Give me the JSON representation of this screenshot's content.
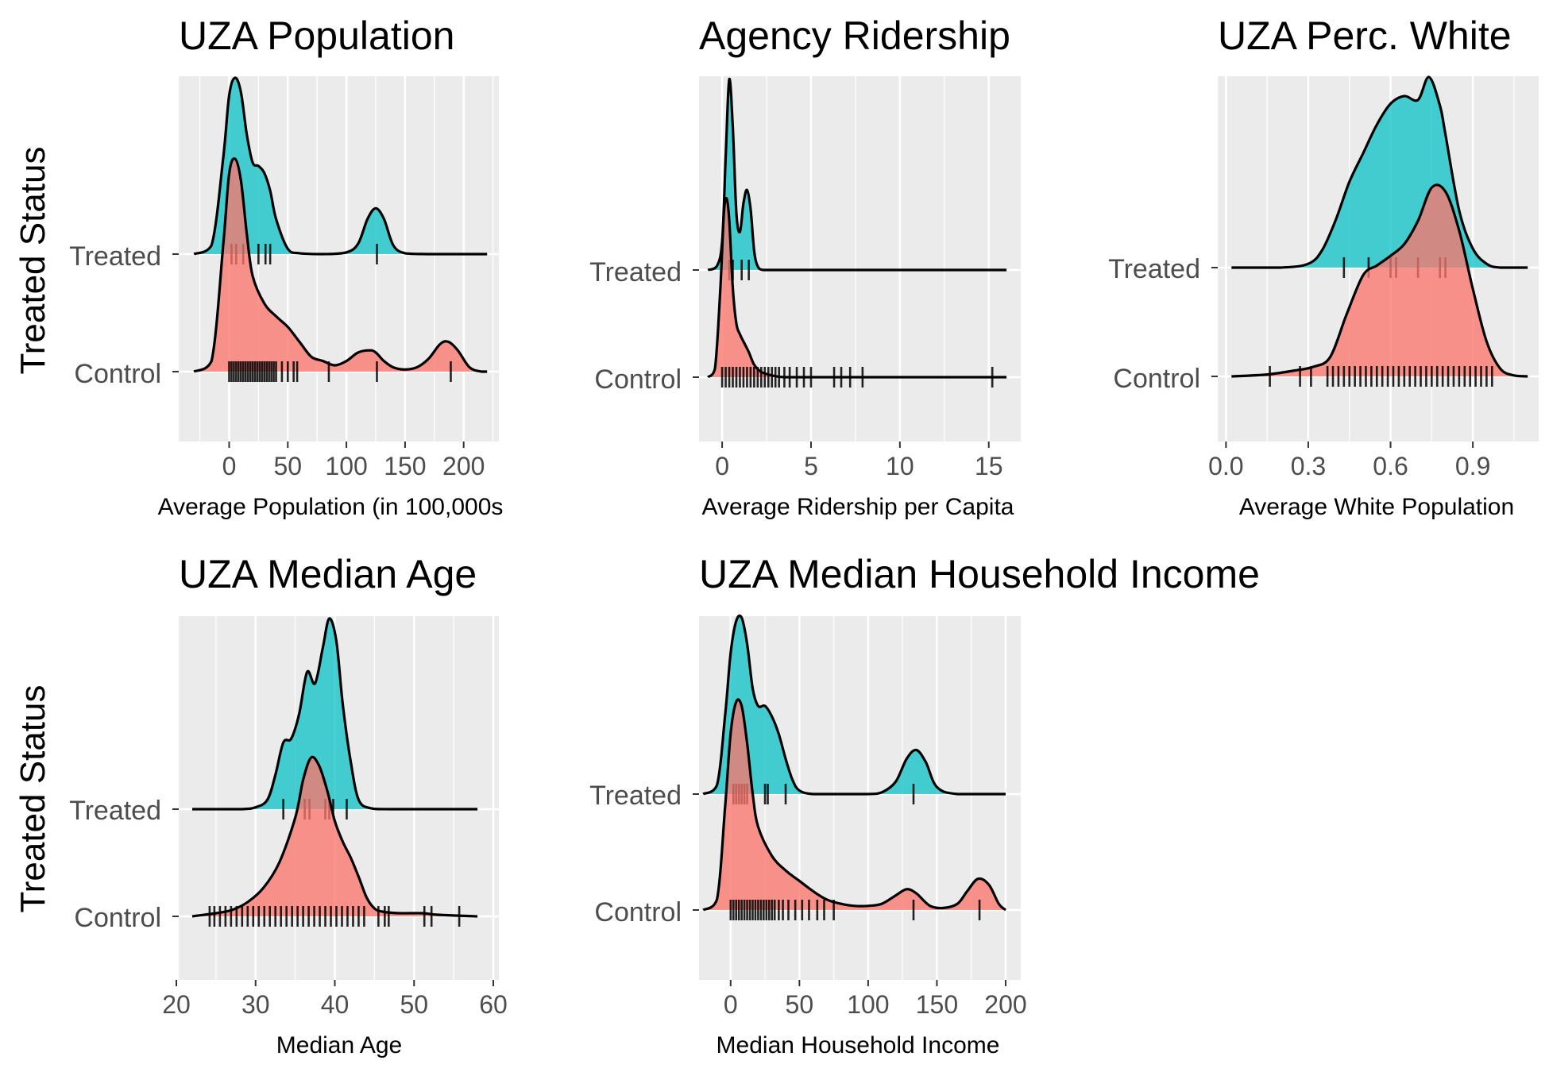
{
  "y_axis_title": "Treated Status",
  "groups": [
    "Treated",
    "Control"
  ],
  "colors": {
    "Treated": "#00BFC4",
    "Control": "#F8766D",
    "panel_bg": "#EBEBEB",
    "grid": "#FFFFFF",
    "outline": "#000000"
  },
  "chart_data": [
    {
      "type": "ridgeline",
      "title": "UZA Population",
      "xlabel": "Average Population (in 100,000s",
      "xlim": [
        -43,
        230
      ],
      "xticks": [
        0,
        50,
        100,
        150,
        200
      ],
      "xtick_labels": [
        "0",
        "50",
        "100",
        "150",
        "200"
      ],
      "series": [
        {
          "name": "Treated",
          "x": [
            -30,
            -15,
            -5,
            0,
            5,
            10,
            15,
            20,
            25,
            30,
            35,
            40,
            50,
            60,
            80,
            100,
            110,
            118,
            125,
            132,
            140,
            150,
            170,
            200,
            220
          ],
          "density": [
            0,
            0.05,
            0.55,
            0.9,
            1.0,
            0.92,
            0.68,
            0.52,
            0.5,
            0.46,
            0.36,
            0.2,
            0.03,
            0.005,
            0,
            0.01,
            0.06,
            0.2,
            0.26,
            0.2,
            0.05,
            0.005,
            0,
            0,
            0
          ],
          "rug": [
            2,
            6,
            12,
            25,
            31,
            35,
            126
          ]
        },
        {
          "name": "Control",
          "x": [
            -30,
            -15,
            -5,
            0,
            5,
            10,
            15,
            20,
            30,
            40,
            50,
            60,
            70,
            80,
            90,
            100,
            110,
            120,
            125,
            132,
            140,
            150,
            160,
            170,
            180,
            187,
            195,
            205,
            215,
            220
          ],
          "density": [
            0,
            0.05,
            0.6,
            0.93,
            1.0,
            0.9,
            0.65,
            0.45,
            0.32,
            0.26,
            0.21,
            0.14,
            0.07,
            0.05,
            0.03,
            0.05,
            0.09,
            0.1,
            0.09,
            0.05,
            0.02,
            0.01,
            0.02,
            0.06,
            0.13,
            0.14,
            0.1,
            0.02,
            0,
            0
          ],
          "rug": [
            0,
            2,
            4,
            6,
            8,
            10,
            12,
            14,
            16,
            18,
            20,
            22,
            24,
            26,
            28,
            30,
            32,
            34,
            36,
            38,
            40,
            45,
            50,
            55,
            58,
            85,
            126,
            189
          ]
        }
      ]
    },
    {
      "type": "ridgeline",
      "title": "Agency Ridership",
      "xlabel": "Average Ridership per Capita",
      "xlim": [
        -1.3,
        16.8
      ],
      "xticks": [
        0,
        5,
        10,
        15
      ],
      "xtick_labels": [
        "0",
        "5",
        "10",
        "15"
      ],
      "series": [
        {
          "name": "Treated",
          "x": [
            -0.8,
            -0.3,
            0,
            0.2,
            0.4,
            0.6,
            0.8,
            1.0,
            1.2,
            1.4,
            1.6,
            1.8,
            2.0,
            2.3,
            3,
            5,
            10,
            16
          ],
          "density": [
            0,
            0.02,
            0.15,
            0.6,
            1.0,
            0.75,
            0.3,
            0.2,
            0.35,
            0.42,
            0.32,
            0.1,
            0.02,
            0,
            0,
            0,
            0,
            0
          ],
          "rug": [
            0.4,
            0.6,
            1.1,
            1.5
          ]
        },
        {
          "name": "Control",
          "x": [
            -0.8,
            -0.4,
            -0.1,
            0.1,
            0.25,
            0.4,
            0.6,
            0.8,
            1.0,
            1.2,
            1.5,
            1.8,
            2.2,
            2.8,
            3.5,
            5,
            8,
            12,
            15,
            16
          ],
          "density": [
            0,
            0.05,
            0.5,
            0.92,
            1.0,
            0.88,
            0.5,
            0.3,
            0.24,
            0.2,
            0.14,
            0.07,
            0.03,
            0.01,
            0,
            0,
            0,
            0,
            0,
            0
          ],
          "rug": [
            0,
            0.2,
            0.4,
            0.6,
            0.8,
            1.0,
            1.2,
            1.4,
            1.6,
            1.8,
            2.0,
            2.2,
            2.4,
            2.6,
            2.8,
            3.0,
            3.2,
            3.5,
            3.8,
            4.2,
            4.6,
            5.0,
            6.3,
            6.7,
            7.2,
            7.9,
            15.2
          ]
        }
      ]
    },
    {
      "type": "ridgeline",
      "title": "UZA Perc. White",
      "xlabel": "Average White Population",
      "xlim": [
        -0.03,
        1.14
      ],
      "xticks": [
        0,
        0.3,
        0.6,
        0.9
      ],
      "xtick_labels": [
        "0.0",
        "0.3",
        "0.6",
        "0.9"
      ],
      "series": [
        {
          "name": "Treated",
          "x": [
            0.02,
            0.2,
            0.3,
            0.35,
            0.4,
            0.45,
            0.5,
            0.55,
            0.6,
            0.65,
            0.7,
            0.74,
            0.78,
            0.8,
            0.85,
            0.9,
            0.95,
            1.0,
            1.1
          ],
          "density": [
            0,
            0,
            0.02,
            0.09,
            0.25,
            0.45,
            0.6,
            0.75,
            0.86,
            0.9,
            0.88,
            1.0,
            0.85,
            0.7,
            0.3,
            0.1,
            0.02,
            0,
            0
          ],
          "rug": [
            0.43,
            0.52,
            0.6,
            0.62,
            0.7,
            0.78,
            0.8
          ]
        },
        {
          "name": "Control",
          "x": [
            0.02,
            0.15,
            0.25,
            0.32,
            0.38,
            0.44,
            0.5,
            0.55,
            0.6,
            0.65,
            0.7,
            0.75,
            0.8,
            0.85,
            0.9,
            0.95,
            1.0,
            1.05,
            1.1
          ],
          "density": [
            0,
            0.01,
            0.03,
            0.05,
            0.1,
            0.32,
            0.52,
            0.57,
            0.62,
            0.68,
            0.8,
            0.97,
            0.95,
            0.75,
            0.45,
            0.18,
            0.04,
            0.005,
            0
          ],
          "rug": [
            0.16,
            0.27,
            0.31,
            0.37,
            0.39,
            0.41,
            0.43,
            0.45,
            0.47,
            0.49,
            0.51,
            0.53,
            0.55,
            0.57,
            0.59,
            0.61,
            0.63,
            0.65,
            0.67,
            0.69,
            0.71,
            0.73,
            0.75,
            0.77,
            0.79,
            0.81,
            0.83,
            0.85,
            0.87,
            0.89,
            0.91,
            0.93,
            0.95,
            0.97
          ]
        }
      ]
    },
    {
      "type": "ridgeline",
      "title": "UZA Median Age",
      "xlabel": "Median Age",
      "xlim": [
        20.3,
        60.7
      ],
      "xticks": [
        20,
        30,
        40,
        50,
        60
      ],
      "xtick_labels": [
        "20",
        "30",
        "40",
        "50",
        "60"
      ],
      "series": [
        {
          "name": "Treated",
          "x": [
            22,
            28,
            30,
            31.5,
            32.5,
            33.5,
            34.5,
            35.5,
            36.5,
            37.5,
            38.5,
            39.3,
            40.2,
            41,
            42,
            43,
            44.5,
            47,
            58
          ],
          "density": [
            0,
            0,
            0.01,
            0.05,
            0.18,
            0.35,
            0.37,
            0.5,
            0.72,
            0.66,
            0.85,
            1.0,
            0.88,
            0.55,
            0.25,
            0.05,
            0.005,
            0,
            0
          ],
          "rug": [
            33.5,
            36.2,
            36.8,
            38.8,
            39.3,
            39.8,
            41.5
          ]
        },
        {
          "name": "Control",
          "x": [
            22,
            25,
            27,
            29,
            31,
            33,
            35,
            36,
            37,
            38,
            39,
            40,
            41,
            42,
            43,
            44,
            45,
            46,
            48,
            51,
            53,
            58
          ],
          "density": [
            0,
            0.02,
            0.04,
            0.09,
            0.18,
            0.34,
            0.62,
            0.86,
            1.0,
            0.95,
            0.8,
            0.6,
            0.47,
            0.37,
            0.25,
            0.12,
            0.05,
            0.03,
            0.02,
            0.02,
            0.01,
            0
          ],
          "rug": [
            24.2,
            24.8,
            25.5,
            26.2,
            26.9,
            27.6,
            28.3,
            29,
            29.7,
            30.4,
            31.1,
            31.8,
            32.5,
            33.2,
            33.9,
            34.6,
            35.3,
            36,
            36.7,
            37.4,
            38.1,
            38.8,
            39.5,
            40.2,
            40.9,
            41.6,
            42.3,
            43,
            43.7,
            45.5,
            46.3,
            46.8,
            51.3,
            52.2,
            55.7
          ]
        }
      ]
    },
    {
      "type": "ridgeline",
      "title": "UZA Median Household Income",
      "xlabel": "Median Household Income",
      "xlim": [
        -23,
        211
      ],
      "xticks": [
        0,
        50,
        100,
        150,
        200
      ],
      "xtick_labels": [
        "0",
        "50",
        "100",
        "150",
        "200"
      ],
      "series": [
        {
          "name": "Treated",
          "x": [
            -20,
            -10,
            -4,
            0,
            4,
            8,
            12,
            16,
            20,
            25,
            30,
            35,
            40,
            45,
            50,
            60,
            80,
            100,
            110,
            120,
            128,
            135,
            142,
            150,
            165,
            200
          ],
          "density": [
            0,
            0.05,
            0.45,
            0.8,
            0.98,
            1.0,
            0.85,
            0.6,
            0.5,
            0.5,
            0.44,
            0.34,
            0.2,
            0.08,
            0.02,
            0,
            0,
            0,
            0.01,
            0.07,
            0.2,
            0.25,
            0.18,
            0.04,
            0,
            0
          ],
          "rug": [
            2,
            4,
            6,
            8,
            10,
            12,
            25,
            27,
            40,
            133
          ]
        },
        {
          "name": "Control",
          "x": [
            -20,
            -10,
            -4,
            0,
            4,
            8,
            12,
            16,
            20,
            30,
            40,
            50,
            60,
            70,
            80,
            90,
            100,
            110,
            120,
            128,
            135,
            145,
            155,
            165,
            172,
            180,
            188,
            195,
            200
          ],
          "density": [
            0,
            0.05,
            0.5,
            0.85,
            1.0,
            0.98,
            0.8,
            0.56,
            0.4,
            0.26,
            0.19,
            0.14,
            0.09,
            0.05,
            0.03,
            0.02,
            0.02,
            0.03,
            0.07,
            0.1,
            0.08,
            0.02,
            0.01,
            0.03,
            0.09,
            0.15,
            0.12,
            0.03,
            0
          ],
          "rug": [
            0,
            2,
            4,
            6,
            8,
            10,
            12,
            14,
            16,
            18,
            20,
            22,
            24,
            26,
            28,
            30,
            32,
            35,
            38,
            42,
            47,
            52,
            57,
            63,
            68,
            75,
            133,
            181
          ]
        }
      ]
    }
  ]
}
